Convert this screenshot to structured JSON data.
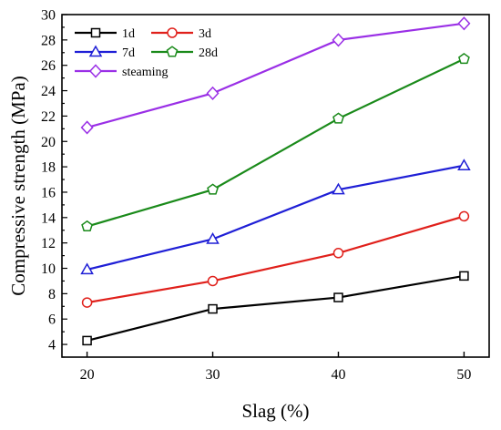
{
  "chart_data": {
    "type": "line",
    "x": [
      20,
      30,
      40,
      50
    ],
    "xlabel": "Slag (%)",
    "ylabel": "Compressive strength (MPa)",
    "xlim": [
      18,
      52
    ],
    "ylim": [
      3,
      30
    ],
    "xticks": [
      20,
      30,
      40,
      50
    ],
    "yticks": [
      4,
      6,
      8,
      10,
      12,
      14,
      16,
      18,
      20,
      22,
      24,
      26,
      28,
      30
    ],
    "legend_position": "top-left",
    "grid": false,
    "series": [
      {
        "name": "1d",
        "color": "#000000",
        "marker": "square",
        "values": [
          4.3,
          6.8,
          7.7,
          9.4
        ]
      },
      {
        "name": "3d",
        "color": "#e0201b",
        "marker": "circle",
        "values": [
          7.3,
          9.0,
          11.2,
          14.1
        ]
      },
      {
        "name": "7d",
        "color": "#1f1fd6",
        "marker": "triangle",
        "values": [
          9.9,
          12.3,
          16.2,
          18.1
        ]
      },
      {
        "name": "28d",
        "color": "#1a8a1a",
        "marker": "pentagon",
        "values": [
          13.3,
          16.2,
          21.8,
          26.5
        ]
      },
      {
        "name": "steaming",
        "color": "#9a2fe6",
        "marker": "diamond",
        "values": [
          21.1,
          23.8,
          28.0,
          29.3
        ]
      }
    ]
  }
}
